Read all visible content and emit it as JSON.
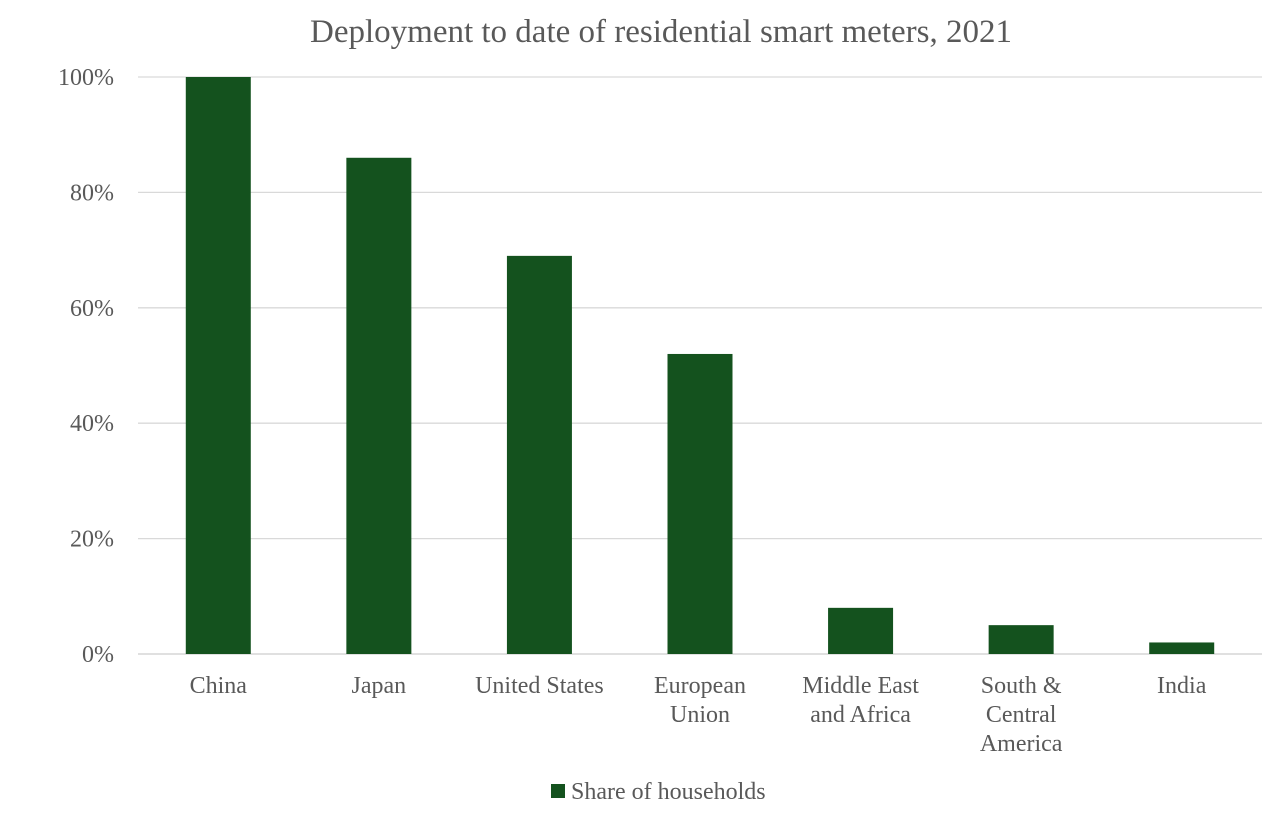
{
  "chart_data": {
    "type": "bar",
    "title": "Deployment to date of residential smart meters, 2021",
    "categories": [
      [
        "China"
      ],
      [
        "Japan"
      ],
      [
        "United States"
      ],
      [
        "European",
        "Union"
      ],
      [
        "Middle East",
        "and Africa"
      ],
      [
        "South &",
        "Central",
        "America"
      ],
      [
        "India"
      ]
    ],
    "series": [
      {
        "name": "Share of households",
        "color": "#14521E",
        "values": [
          100,
          86,
          69,
          52,
          8,
          5,
          2
        ]
      }
    ],
    "ylim": [
      0,
      100
    ],
    "yticks": [
      0,
      20,
      40,
      60,
      80,
      100
    ],
    "ytick_labels": [
      "0%",
      "20%",
      "40%",
      "60%",
      "80%",
      "100%"
    ],
    "grid": true,
    "legend_position": "bottom"
  }
}
